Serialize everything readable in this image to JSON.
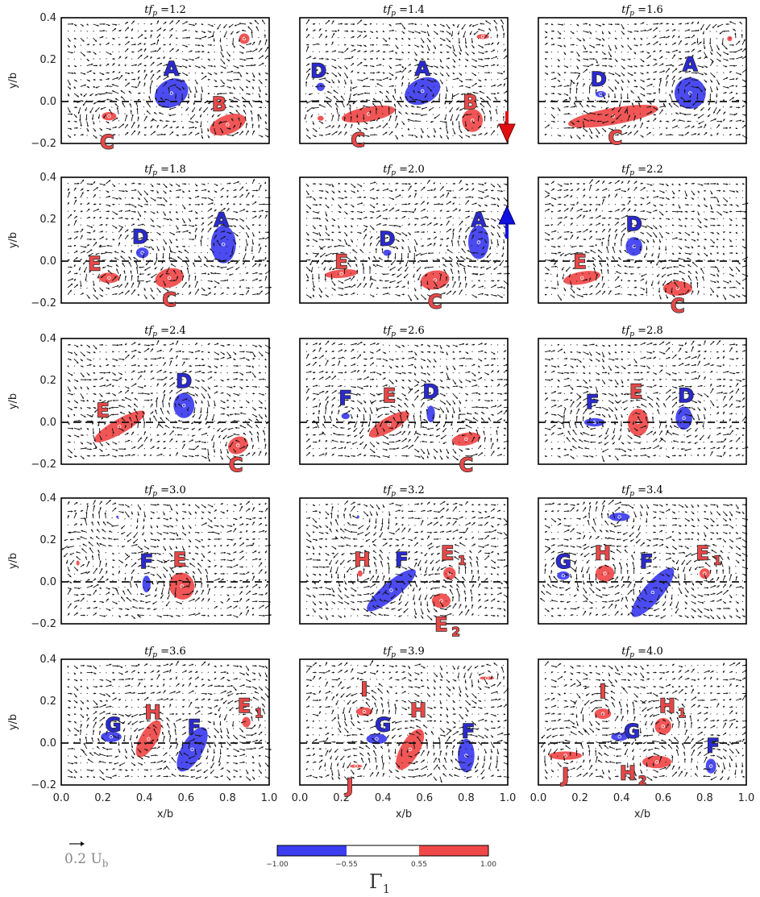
{
  "colors": {
    "negative": "#3c3cf0",
    "positive": "#f04848",
    "arrow_down": "#e01010",
    "arrow_up": "#1010e0"
  },
  "chart_data": {
    "type": "vector-field-contour",
    "xlabel": "x/b",
    "ylabel": "y/b",
    "xlim": [
      0.0,
      1.0
    ],
    "ylim": [
      -0.2,
      0.4
    ],
    "xticks": [
      "0.0",
      "0.2",
      "0.4",
      "0.6",
      "0.8",
      "1.0"
    ],
    "yticks": [
      "−0.2",
      "0.0",
      "0.2",
      "0.4"
    ],
    "time_label": "tf_p",
    "panels": [
      {
        "t": "=1.2",
        "vortices": [
          {
            "label": "A",
            "sign": "neg",
            "x": 0.53,
            "y": 0.04,
            "rx": 0.085,
            "ry": 0.065,
            "rot": -30,
            "lx": 0.53,
            "ly": 0.16
          },
          {
            "label": "B",
            "sign": "pos",
            "x": 0.8,
            "y": -0.11,
            "rx": 0.09,
            "ry": 0.045,
            "rot": -20,
            "lx": 0.76,
            "ly": -0.01
          },
          {
            "label": "C",
            "sign": "pos",
            "x": 0.23,
            "y": -0.07,
            "rx": 0.035,
            "ry": 0.02,
            "rot": 0,
            "lx": 0.22,
            "ly": -0.19
          },
          {
            "label": "",
            "sign": "pos",
            "x": 0.88,
            "y": 0.3,
            "rx": 0.025,
            "ry": 0.025,
            "rot": 0,
            "lx": 0,
            "ly": 0
          }
        ]
      },
      {
        "t": "=1.4",
        "vortices": [
          {
            "label": "A",
            "sign": "neg",
            "x": 0.59,
            "y": 0.05,
            "rx": 0.09,
            "ry": 0.06,
            "rot": -25,
            "lx": 0.59,
            "ly": 0.16
          },
          {
            "label": "B",
            "sign": "pos",
            "x": 0.83,
            "y": -0.09,
            "rx": 0.05,
            "ry": 0.055,
            "rot": 0,
            "lx": 0.82,
            "ly": 0.0
          },
          {
            "label": "C",
            "sign": "pos",
            "x": 0.33,
            "y": -0.06,
            "rx": 0.13,
            "ry": 0.035,
            "rot": -10,
            "lx": 0.28,
            "ly": -0.18
          },
          {
            "label": "D",
            "sign": "neg",
            "x": 0.1,
            "y": 0.07,
            "rx": 0.02,
            "ry": 0.02,
            "rot": 0,
            "lx": 0.09,
            "ly": 0.15
          },
          {
            "label": "",
            "sign": "pos",
            "x": 0.1,
            "y": -0.08,
            "rx": 0.015,
            "ry": 0.012,
            "rot": 0,
            "lx": 0,
            "ly": 0
          },
          {
            "label": "",
            "sign": "pos",
            "x": 0.88,
            "y": 0.31,
            "rx": 0.03,
            "ry": 0.012,
            "rot": 0,
            "lx": 0,
            "ly": 0
          }
        ]
      },
      {
        "t": "=1.6",
        "vortices": [
          {
            "label": "A",
            "sign": "neg",
            "x": 0.73,
            "y": 0.04,
            "rx": 0.075,
            "ry": 0.075,
            "rot": -30,
            "lx": 0.73,
            "ly": 0.18
          },
          {
            "label": "C",
            "sign": "pos",
            "x": 0.36,
            "y": -0.07,
            "rx": 0.22,
            "ry": 0.04,
            "rot": -10,
            "lx": 0.37,
            "ly": -0.17
          },
          {
            "label": "D",
            "sign": "neg",
            "x": 0.3,
            "y": 0.035,
            "rx": 0.025,
            "ry": 0.015,
            "rot": 0,
            "lx": 0.29,
            "ly": 0.11
          },
          {
            "label": "",
            "sign": "pos",
            "x": 0.92,
            "y": 0.3,
            "rx": 0.012,
            "ry": 0.012,
            "rot": 0,
            "lx": 0,
            "ly": 0
          }
        ]
      },
      {
        "t": "=1.8",
        "vortices": [
          {
            "label": "A",
            "sign": "neg",
            "x": 0.78,
            "y": 0.08,
            "rx": 0.06,
            "ry": 0.09,
            "rot": 0,
            "lx": 0.77,
            "ly": 0.2
          },
          {
            "label": "C",
            "sign": "pos",
            "x": 0.52,
            "y": -0.08,
            "rx": 0.07,
            "ry": 0.045,
            "rot": -15,
            "lx": 0.52,
            "ly": -0.18
          },
          {
            "label": "D",
            "sign": "neg",
            "x": 0.39,
            "y": 0.04,
            "rx": 0.03,
            "ry": 0.025,
            "rot": 0,
            "lx": 0.38,
            "ly": 0.12
          },
          {
            "label": "E",
            "sign": "pos",
            "x": 0.23,
            "y": -0.08,
            "rx": 0.05,
            "ry": 0.025,
            "rot": 0,
            "lx": 0.16,
            "ly": -0.01
          }
        ]
      },
      {
        "t": "=2.0",
        "vortices": [
          {
            "label": "A",
            "sign": "neg",
            "x": 0.86,
            "y": 0.09,
            "rx": 0.05,
            "ry": 0.08,
            "rot": 0,
            "lx": 0.86,
            "ly": 0.2
          },
          {
            "label": "C",
            "sign": "pos",
            "x": 0.65,
            "y": -0.09,
            "rx": 0.07,
            "ry": 0.045,
            "rot": -10,
            "lx": 0.65,
            "ly": -0.19
          },
          {
            "label": "D",
            "sign": "neg",
            "x": 0.42,
            "y": 0.04,
            "rx": 0.02,
            "ry": 0.015,
            "rot": 0,
            "lx": 0.42,
            "ly": 0.11
          },
          {
            "label": "E",
            "sign": "pos",
            "x": 0.2,
            "y": -0.06,
            "rx": 0.08,
            "ry": 0.02,
            "rot": -5,
            "lx": 0.2,
            "ly": 0.0
          }
        ]
      },
      {
        "t": "=2.2",
        "vortices": [
          {
            "label": "C",
            "sign": "pos",
            "x": 0.67,
            "y": -0.13,
            "rx": 0.07,
            "ry": 0.035,
            "rot": 0,
            "lx": 0.67,
            "ly": -0.21
          },
          {
            "label": "D",
            "sign": "neg",
            "x": 0.46,
            "y": 0.07,
            "rx": 0.04,
            "ry": 0.045,
            "rot": 0,
            "lx": 0.46,
            "ly": 0.18
          },
          {
            "label": "E",
            "sign": "pos",
            "x": 0.21,
            "y": -0.08,
            "rx": 0.09,
            "ry": 0.03,
            "rot": -10,
            "lx": 0.2,
            "ly": 0.0
          }
        ]
      },
      {
        "t": "=2.4",
        "vortices": [
          {
            "label": "C",
            "sign": "pos",
            "x": 0.85,
            "y": -0.11,
            "rx": 0.05,
            "ry": 0.04,
            "rot": -30,
            "lx": 0.84,
            "ly": -0.2
          },
          {
            "label": "D",
            "sign": "neg",
            "x": 0.59,
            "y": 0.08,
            "rx": 0.05,
            "ry": 0.06,
            "rot": 0,
            "lx": 0.59,
            "ly": 0.2
          },
          {
            "label": "E",
            "sign": "pos",
            "x": 0.28,
            "y": -0.02,
            "rx": 0.14,
            "ry": 0.035,
            "rot": -30,
            "lx": 0.2,
            "ly": 0.06
          }
        ]
      },
      {
        "t": "=2.6",
        "vortices": [
          {
            "label": "C",
            "sign": "pos",
            "x": 0.8,
            "y": -0.08,
            "rx": 0.07,
            "ry": 0.03,
            "rot": -10,
            "lx": 0.8,
            "ly": -0.2
          },
          {
            "label": "D",
            "sign": "neg",
            "x": 0.63,
            "y": 0.04,
            "rx": 0.02,
            "ry": 0.04,
            "rot": 0,
            "lx": 0.63,
            "ly": 0.15
          },
          {
            "label": "E",
            "sign": "pos",
            "x": 0.43,
            "y": -0.01,
            "rx": 0.11,
            "ry": 0.035,
            "rot": -30,
            "lx": 0.43,
            "ly": 0.13
          },
          {
            "label": "F",
            "sign": "neg",
            "x": 0.22,
            "y": 0.03,
            "rx": 0.02,
            "ry": 0.015,
            "rot": 0,
            "lx": 0.22,
            "ly": 0.12
          }
        ]
      },
      {
        "t": "=2.8",
        "vortices": [
          {
            "label": "D",
            "sign": "neg",
            "x": 0.7,
            "y": 0.02,
            "rx": 0.04,
            "ry": 0.055,
            "rot": 0,
            "lx": 0.71,
            "ly": 0.13
          },
          {
            "label": "E",
            "sign": "pos",
            "x": 0.48,
            "y": 0.0,
            "rx": 0.05,
            "ry": 0.065,
            "rot": 0,
            "lx": 0.47,
            "ly": 0.15
          },
          {
            "label": "F",
            "sign": "neg",
            "x": 0.27,
            "y": 0.0,
            "rx": 0.05,
            "ry": 0.02,
            "rot": 0,
            "lx": 0.26,
            "ly": 0.1
          }
        ]
      },
      {
        "t": "=3.0",
        "vortices": [
          {
            "label": "E",
            "sign": "pos",
            "x": 0.58,
            "y": -0.02,
            "rx": 0.06,
            "ry": 0.065,
            "rot": -20,
            "lx": 0.57,
            "ly": 0.11
          },
          {
            "label": "F",
            "sign": "neg",
            "x": 0.41,
            "y": -0.01,
            "rx": 0.02,
            "ry": 0.04,
            "rot": 0,
            "lx": 0.41,
            "ly": 0.1
          },
          {
            "label": "",
            "sign": "pos",
            "x": 0.08,
            "y": 0.09,
            "rx": 0.008,
            "ry": 0.012,
            "rot": 0,
            "lx": 0,
            "ly": 0
          },
          {
            "label": "",
            "sign": "neg",
            "x": 0.27,
            "y": 0.31,
            "rx": 0.006,
            "ry": 0.006,
            "rot": 0,
            "lx": 0,
            "ly": 0
          }
        ]
      },
      {
        "t": "=3.2",
        "vortices": [
          {
            "label": "F",
            "sign": "neg",
            "x": 0.44,
            "y": -0.04,
            "rx": 0.15,
            "ry": 0.04,
            "rot": -40,
            "lx": 0.49,
            "ly": 0.11
          },
          {
            "label": "H",
            "sign": "pos",
            "x": 0.29,
            "y": 0.04,
            "rx": 0.012,
            "ry": 0.015,
            "rot": 0,
            "lx": 0.3,
            "ly": 0.11
          },
          {
            "label": "E",
            "sub": "1",
            "sign": "pos",
            "x": 0.72,
            "y": 0.04,
            "rx": 0.03,
            "ry": 0.03,
            "rot": 0,
            "lx": 0.71,
            "ly": 0.14
          },
          {
            "label": "E",
            "sub": "2",
            "sign": "pos",
            "x": 0.68,
            "y": -0.09,
            "rx": 0.045,
            "ry": 0.035,
            "rot": 0,
            "lx": 0.68,
            "ly": -0.2
          },
          {
            "label": "",
            "sign": "neg",
            "x": 0.28,
            "y": 0.31,
            "rx": 0.006,
            "ry": 0.008,
            "rot": 0,
            "lx": 0,
            "ly": 0
          }
        ]
      },
      {
        "t": "=3.4",
        "vortices": [
          {
            "label": "F",
            "sign": "neg",
            "x": 0.55,
            "y": -0.05,
            "rx": 0.15,
            "ry": 0.045,
            "rot": -50,
            "lx": 0.52,
            "ly": 0.1
          },
          {
            "label": "G",
            "sign": "neg",
            "x": 0.12,
            "y": 0.03,
            "rx": 0.03,
            "ry": 0.02,
            "rot": 0,
            "lx": 0.12,
            "ly": 0.1
          },
          {
            "label": "H",
            "sign": "pos",
            "x": 0.32,
            "y": 0.04,
            "rx": 0.045,
            "ry": 0.04,
            "rot": 0,
            "lx": 0.31,
            "ly": 0.14
          },
          {
            "label": "E",
            "sub": "1",
            "sign": "pos",
            "x": 0.8,
            "y": 0.04,
            "rx": 0.025,
            "ry": 0.025,
            "rot": 0,
            "lx": 0.79,
            "ly": 0.14
          },
          {
            "label": "",
            "sign": "neg",
            "x": 0.39,
            "y": 0.31,
            "rx": 0.05,
            "ry": 0.02,
            "rot": 0,
            "lx": 0,
            "ly": 0
          }
        ]
      },
      {
        "t": "=3.6",
        "vortices": [
          {
            "label": "F",
            "sign": "neg",
            "x": 0.63,
            "y": -0.03,
            "rx": 0.12,
            "ry": 0.05,
            "rot": -60,
            "lx": 0.64,
            "ly": 0.08
          },
          {
            "label": "G",
            "sign": "neg",
            "x": 0.24,
            "y": 0.03,
            "rx": 0.05,
            "ry": 0.025,
            "rot": 0,
            "lx": 0.25,
            "ly": 0.09
          },
          {
            "label": "H",
            "sign": "pos",
            "x": 0.42,
            "y": 0.02,
            "rx": 0.1,
            "ry": 0.04,
            "rot": -60,
            "lx": 0.44,
            "ly": 0.15
          },
          {
            "label": "E",
            "sub": "1",
            "sign": "pos",
            "x": 0.89,
            "y": 0.1,
            "rx": 0.02,
            "ry": 0.025,
            "rot": 0,
            "lx": 0.88,
            "ly": 0.18
          }
        ]
      },
      {
        "t": "=3.9",
        "vortices": [
          {
            "label": "F",
            "sign": "neg",
            "x": 0.8,
            "y": -0.06,
            "rx": 0.04,
            "ry": 0.08,
            "rot": 0,
            "lx": 0.81,
            "ly": 0.06
          },
          {
            "label": "G",
            "sign": "neg",
            "x": 0.37,
            "y": 0.02,
            "rx": 0.05,
            "ry": 0.025,
            "rot": 0,
            "lx": 0.4,
            "ly": 0.09
          },
          {
            "label": "H",
            "sign": "pos",
            "x": 0.53,
            "y": -0.03,
            "rx": 0.11,
            "ry": 0.045,
            "rot": -60,
            "lx": 0.57,
            "ly": 0.16
          },
          {
            "label": "I",
            "sign": "pos",
            "x": 0.31,
            "y": 0.15,
            "rx": 0.04,
            "ry": 0.02,
            "rot": 0,
            "lx": 0.31,
            "ly": 0.26
          },
          {
            "label": "J",
            "sign": "pos",
            "x": 0.27,
            "y": -0.11,
            "rx": 0.03,
            "ry": 0.008,
            "rot": 0,
            "lx": 0.24,
            "ly": -0.2
          },
          {
            "label": "",
            "sign": "pos",
            "x": 0.9,
            "y": 0.31,
            "rx": 0.035,
            "ry": 0.008,
            "rot": 0,
            "lx": 0,
            "ly": 0
          }
        ]
      },
      {
        "t": "=4.0",
        "vortices": [
          {
            "label": "F",
            "sign": "neg",
            "x": 0.83,
            "y": -0.11,
            "rx": 0.025,
            "ry": 0.035,
            "rot": 0,
            "lx": 0.84,
            "ly": -0.01
          },
          {
            "label": "G",
            "sign": "neg",
            "x": 0.39,
            "y": 0.03,
            "rx": 0.04,
            "ry": 0.02,
            "rot": 0,
            "lx": 0.45,
            "ly": 0.06
          },
          {
            "label": "H",
            "sub": "1",
            "sign": "pos",
            "x": 0.6,
            "y": 0.08,
            "rx": 0.04,
            "ry": 0.04,
            "rot": 0,
            "lx": 0.62,
            "ly": 0.18
          },
          {
            "label": "H",
            "sub": "2",
            "sign": "pos",
            "x": 0.57,
            "y": -0.09,
            "rx": 0.07,
            "ry": 0.03,
            "rot": 0,
            "lx": 0.43,
            "ly": -0.14
          },
          {
            "label": "I",
            "sign": "pos",
            "x": 0.31,
            "y": 0.14,
            "rx": 0.04,
            "ry": 0.025,
            "rot": 0,
            "lx": 0.31,
            "ly": 0.25
          },
          {
            "label": "J",
            "sign": "pos",
            "x": 0.13,
            "y": -0.06,
            "rx": 0.08,
            "ry": 0.02,
            "rot": 0,
            "lx": 0.13,
            "ly": -0.15
          }
        ]
      }
    ],
    "colorbar": {
      "ticks": [
        "−1.00",
        "−0.55",
        "0.55",
        "1.00"
      ],
      "label": "Γ",
      "label_sub": "1",
      "segments": [
        "neg",
        "none",
        "pos"
      ]
    },
    "scale_label": "0.2 U",
    "scale_label_sub": "b"
  }
}
